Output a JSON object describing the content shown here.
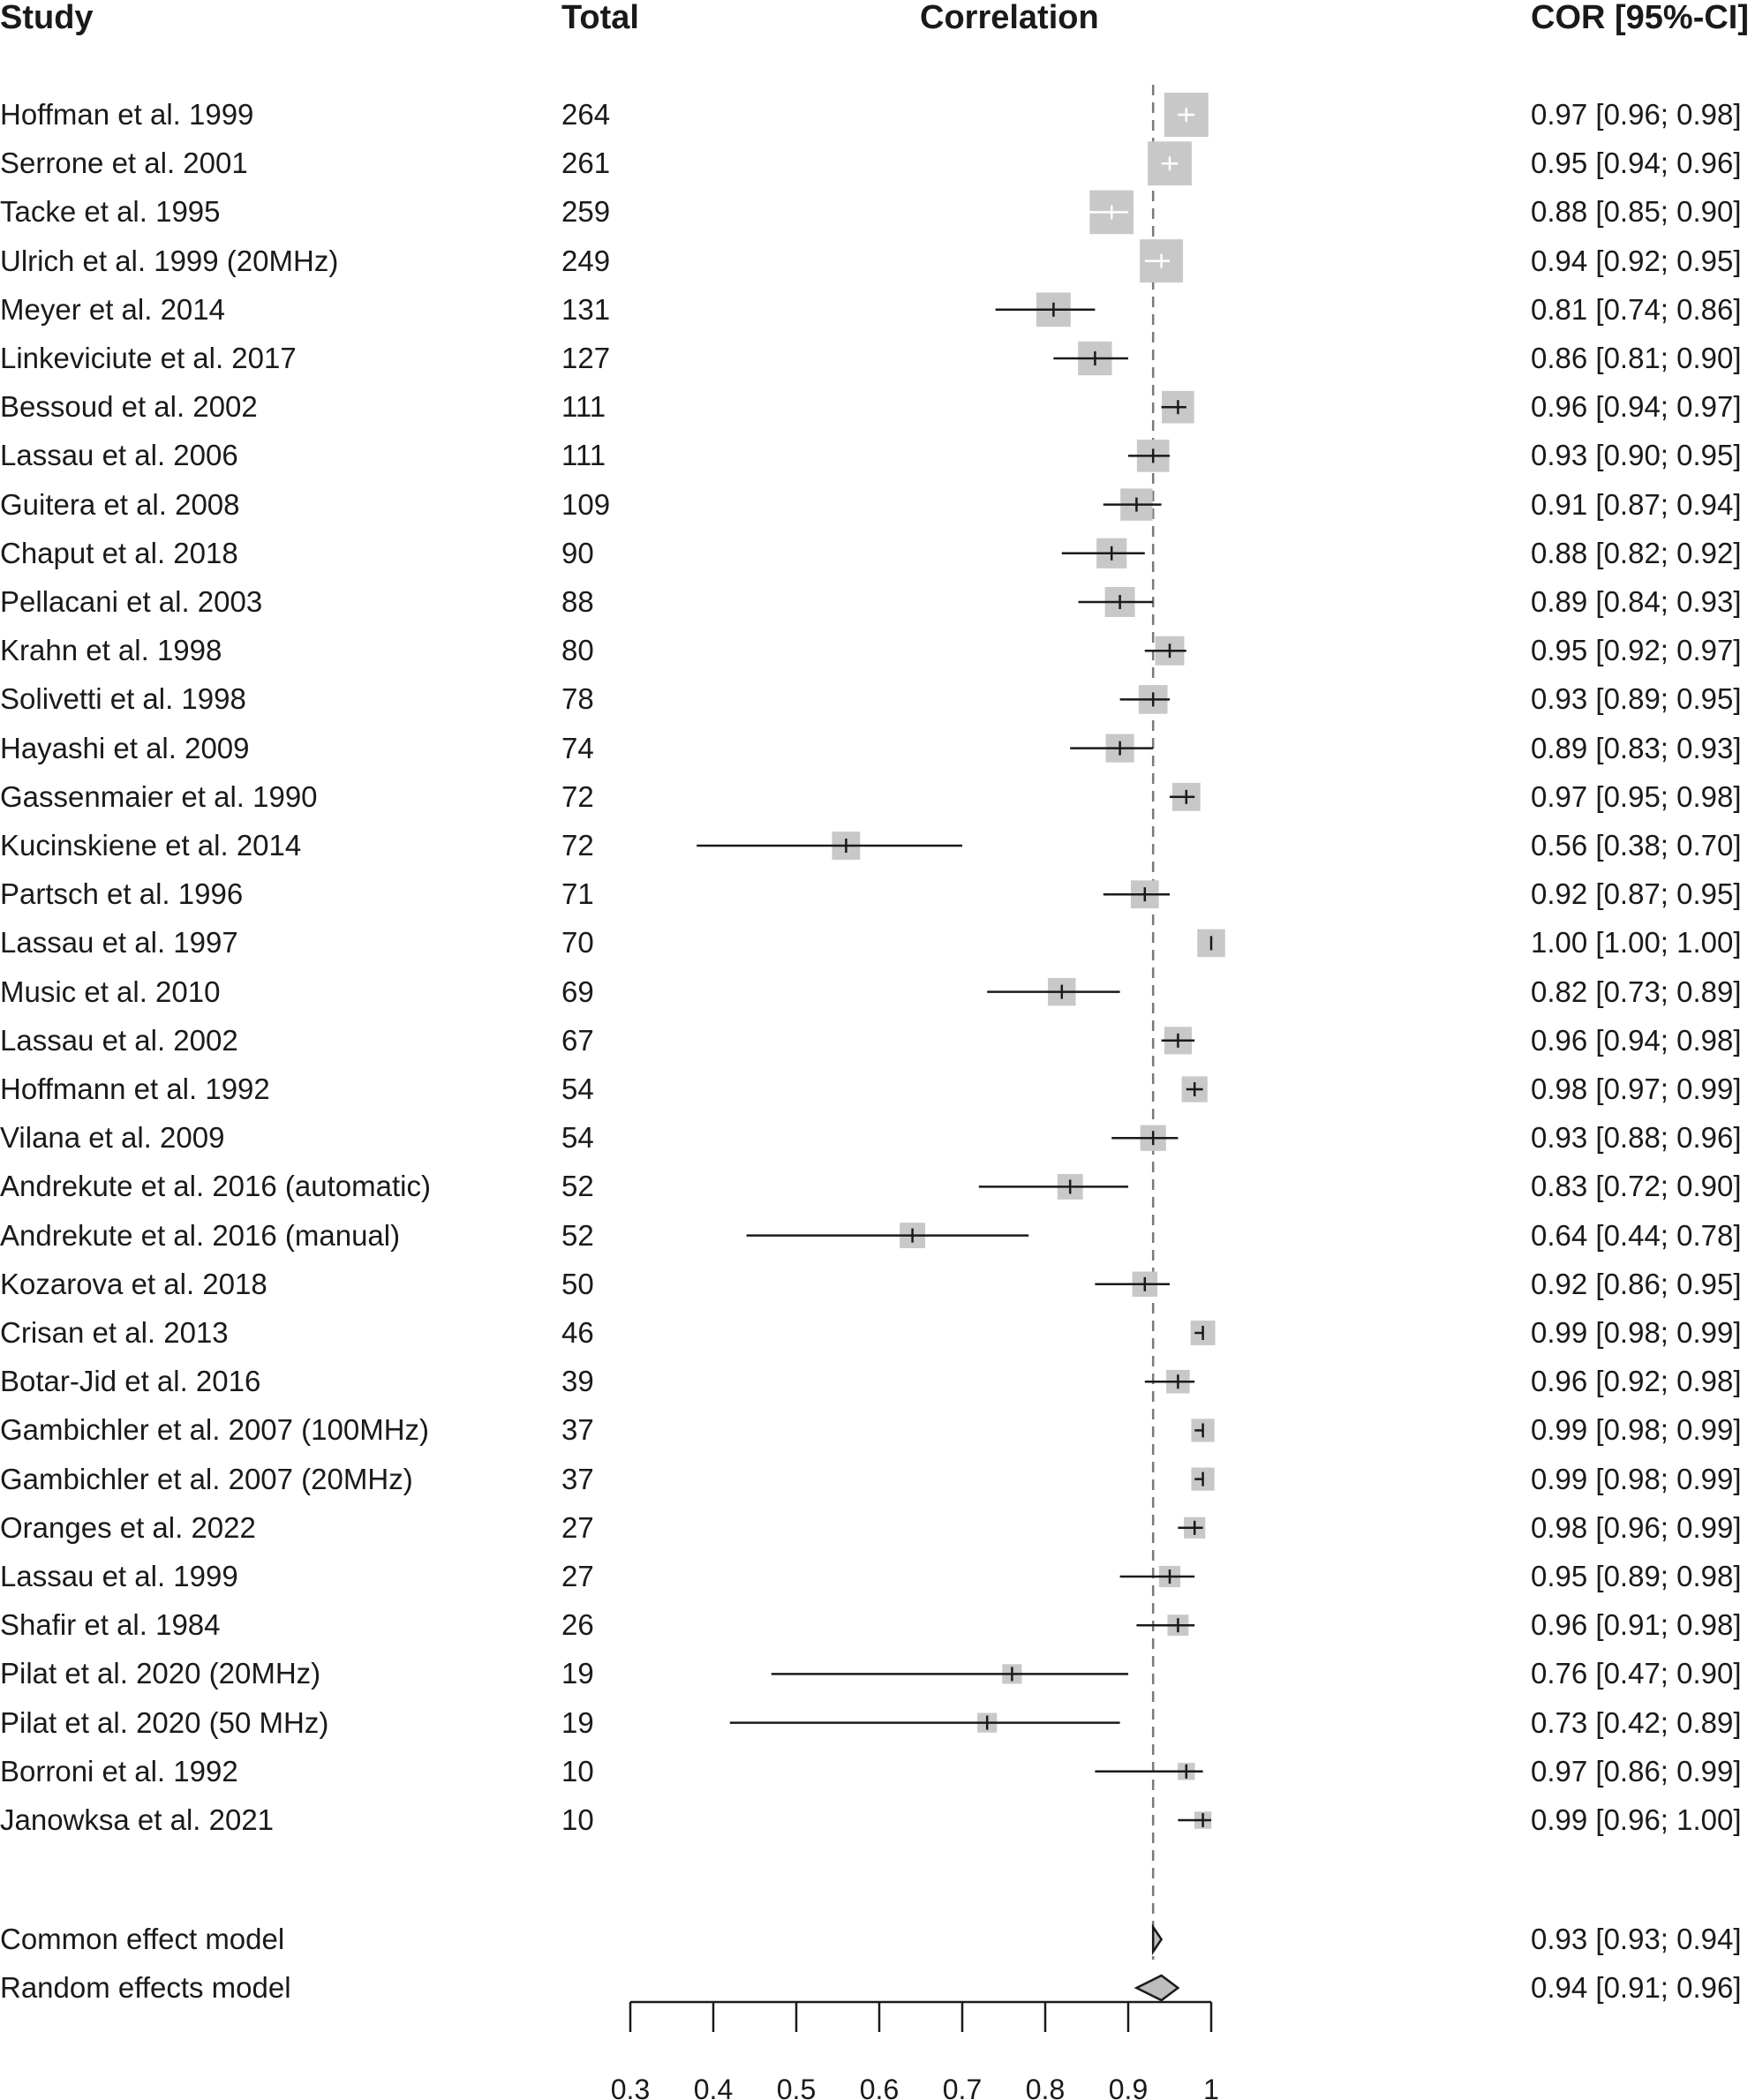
{
  "headers": {
    "study": "Study",
    "total": "Total",
    "correlation": "Correlation",
    "cor_ci": "COR [95%-CI]"
  },
  "chart_data": {
    "type": "forest",
    "reference_line": 0.93,
    "xlim": [
      0.3,
      1
    ],
    "x_ticks": [
      0.3,
      0.4,
      0.5,
      0.6,
      0.7,
      0.8,
      0.9,
      1
    ],
    "x_tick_labels": [
      "0.3",
      "0.4",
      "0.5",
      "0.6",
      "0.7",
      "0.8",
      "0.9",
      "1"
    ],
    "studies": [
      {
        "study": "Hoffman et al. 1999",
        "total": "264",
        "cor": 0.97,
        "lo": 0.96,
        "hi": 0.98,
        "ci_text": "0.97 [0.96; 0.98]"
      },
      {
        "study": "Serrone et al. 2001",
        "total": "261",
        "cor": 0.95,
        "lo": 0.94,
        "hi": 0.96,
        "ci_text": "0.95 [0.94; 0.96]"
      },
      {
        "study": "Tacke et al. 1995",
        "total": "259",
        "cor": 0.88,
        "lo": 0.85,
        "hi": 0.9,
        "ci_text": "0.88 [0.85; 0.90]"
      },
      {
        "study": "Ulrich et al. 1999 (20MHz)",
        "total": "249",
        "cor": 0.94,
        "lo": 0.92,
        "hi": 0.95,
        "ci_text": "0.94 [0.92; 0.95]"
      },
      {
        "study": "Meyer et al. 2014",
        "total": "131",
        "cor": 0.81,
        "lo": 0.74,
        "hi": 0.86,
        "ci_text": "0.81 [0.74; 0.86]"
      },
      {
        "study": "Linkeviciute et al. 2017",
        "total": "127",
        "cor": 0.86,
        "lo": 0.81,
        "hi": 0.9,
        "ci_text": "0.86 [0.81; 0.90]"
      },
      {
        "study": "Bessoud et al. 2002",
        "total": "111",
        "cor": 0.96,
        "lo": 0.94,
        "hi": 0.97,
        "ci_text": "0.96 [0.94; 0.97]"
      },
      {
        "study": "Lassau et al. 2006",
        "total": "111",
        "cor": 0.93,
        "lo": 0.9,
        "hi": 0.95,
        "ci_text": "0.93 [0.90; 0.95]"
      },
      {
        "study": "Guitera et al. 2008",
        "total": "109",
        "cor": 0.91,
        "lo": 0.87,
        "hi": 0.94,
        "ci_text": "0.91 [0.87; 0.94]"
      },
      {
        "study": "Chaput et al. 2018",
        "total": "90",
        "cor": 0.88,
        "lo": 0.82,
        "hi": 0.92,
        "ci_text": "0.88 [0.82; 0.92]"
      },
      {
        "study": "Pellacani et al. 2003",
        "total": "88",
        "cor": 0.89,
        "lo": 0.84,
        "hi": 0.93,
        "ci_text": "0.89 [0.84; 0.93]"
      },
      {
        "study": "Krahn et al. 1998",
        "total": "80",
        "cor": 0.95,
        "lo": 0.92,
        "hi": 0.97,
        "ci_text": "0.95 [0.92; 0.97]"
      },
      {
        "study": "Solivetti et al. 1998",
        "total": "78",
        "cor": 0.93,
        "lo": 0.89,
        "hi": 0.95,
        "ci_text": "0.93 [0.89; 0.95]"
      },
      {
        "study": "Hayashi et al. 2009",
        "total": "74",
        "cor": 0.89,
        "lo": 0.83,
        "hi": 0.93,
        "ci_text": "0.89 [0.83; 0.93]"
      },
      {
        "study": "Gassenmaier et al. 1990",
        "total": "72",
        "cor": 0.97,
        "lo": 0.95,
        "hi": 0.98,
        "ci_text": "0.97 [0.95; 0.98]"
      },
      {
        "study": "Kucinskiene et al. 2014",
        "total": "72",
        "cor": 0.56,
        "lo": 0.38,
        "hi": 0.7,
        "ci_text": "0.56 [0.38; 0.70]"
      },
      {
        "study": "Partsch et al. 1996",
        "total": "71",
        "cor": 0.92,
        "lo": 0.87,
        "hi": 0.95,
        "ci_text": "0.92 [0.87; 0.95]"
      },
      {
        "study": "Lassau et al. 1997",
        "total": "70",
        "cor": 1.0,
        "lo": 1.0,
        "hi": 1.0,
        "ci_text": "1.00 [1.00; 1.00]"
      },
      {
        "study": "Music et al. 2010",
        "total": "69",
        "cor": 0.82,
        "lo": 0.73,
        "hi": 0.89,
        "ci_text": "0.82 [0.73; 0.89]"
      },
      {
        "study": "Lassau et al. 2002",
        "total": "67",
        "cor": 0.96,
        "lo": 0.94,
        "hi": 0.98,
        "ci_text": "0.96 [0.94; 0.98]"
      },
      {
        "study": "Hoffmann et al. 1992",
        "total": "54",
        "cor": 0.98,
        "lo": 0.97,
        "hi": 0.99,
        "ci_text": "0.98 [0.97; 0.99]"
      },
      {
        "study": "Vilana et al. 2009",
        "total": "54",
        "cor": 0.93,
        "lo": 0.88,
        "hi": 0.96,
        "ci_text": "0.93 [0.88; 0.96]"
      },
      {
        "study": "Andrekute et al. 2016 (automatic)",
        "total": "52",
        "cor": 0.83,
        "lo": 0.72,
        "hi": 0.9,
        "ci_text": "0.83 [0.72; 0.90]"
      },
      {
        "study": "Andrekute et al. 2016 (manual)",
        "total": "52",
        "cor": 0.64,
        "lo": 0.44,
        "hi": 0.78,
        "ci_text": "0.64 [0.44; 0.78]"
      },
      {
        "study": "Kozarova et al. 2018",
        "total": "50",
        "cor": 0.92,
        "lo": 0.86,
        "hi": 0.95,
        "ci_text": "0.92 [0.86; 0.95]"
      },
      {
        "study": "Crisan et al. 2013",
        "total": "46",
        "cor": 0.99,
        "lo": 0.98,
        "hi": 0.99,
        "ci_text": "0.99 [0.98; 0.99]"
      },
      {
        "study": "Botar-Jid et al. 2016",
        "total": "39",
        "cor": 0.96,
        "lo": 0.92,
        "hi": 0.98,
        "ci_text": "0.96 [0.92; 0.98]"
      },
      {
        "study": "Gambichler et al. 2007 (100MHz)",
        "total": "37",
        "cor": 0.99,
        "lo": 0.98,
        "hi": 0.99,
        "ci_text": "0.99 [0.98; 0.99]"
      },
      {
        "study": "Gambichler et al. 2007 (20MHz)",
        "total": "37",
        "cor": 0.99,
        "lo": 0.98,
        "hi": 0.99,
        "ci_text": "0.99 [0.98; 0.99]"
      },
      {
        "study": "Oranges et al. 2022",
        "total": "27",
        "cor": 0.98,
        "lo": 0.96,
        "hi": 0.99,
        "ci_text": "0.98 [0.96; 0.99]"
      },
      {
        "study": "Lassau et al. 1999",
        "total": "27",
        "cor": 0.95,
        "lo": 0.89,
        "hi": 0.98,
        "ci_text": "0.95 [0.89; 0.98]"
      },
      {
        "study": "Shafir et al. 1984",
        "total": "26",
        "cor": 0.96,
        "lo": 0.91,
        "hi": 0.98,
        "ci_text": "0.96 [0.91; 0.98]"
      },
      {
        "study": "Pilat et al. 2020 (20MHz)",
        "total": "19",
        "cor": 0.76,
        "lo": 0.47,
        "hi": 0.9,
        "ci_text": "0.76 [0.47; 0.90]"
      },
      {
        "study": "Pilat et al. 2020 (50 MHz)",
        "total": "19",
        "cor": 0.73,
        "lo": 0.42,
        "hi": 0.89,
        "ci_text": "0.73 [0.42; 0.89]"
      },
      {
        "study": "Borroni et al. 1992",
        "total": "10",
        "cor": 0.97,
        "lo": 0.86,
        "hi": 0.99,
        "ci_text": "0.97 [0.86; 0.99]"
      },
      {
        "study": "Janowksa et al. 2021",
        "total": "10",
        "cor": 0.99,
        "lo": 0.96,
        "hi": 1.0,
        "ci_text": "0.99 [0.96; 1.00]"
      }
    ],
    "models": [
      {
        "study": "Common effect model",
        "cor": 0.93,
        "lo": 0.93,
        "hi": 0.94,
        "ci_text": "0.93 [0.93; 0.94]"
      },
      {
        "study": "Random effects model",
        "cor": 0.94,
        "lo": 0.91,
        "hi": 0.96,
        "ci_text": "0.94 [0.91; 0.96]"
      }
    ],
    "colors": {
      "square": "#c8c8c8",
      "line": "#1a1a1a",
      "diamond_fill": "#bdbdbd",
      "reference_line": "#7a7a7a"
    }
  }
}
